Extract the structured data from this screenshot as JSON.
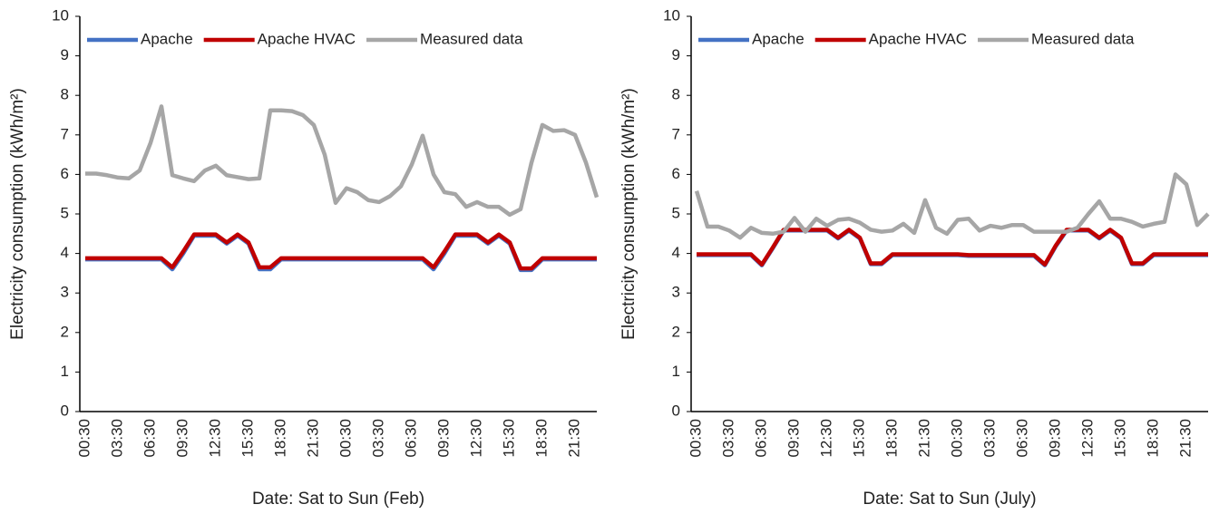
{
  "chart_data": [
    {
      "type": "line",
      "x_label": "Date: Sat to Sun (Feb)",
      "y_label": "Electricity consumption (kWh/m²)",
      "categories": [
        "00:30",
        null,
        null,
        "03:30",
        null,
        null,
        "06:30",
        null,
        null,
        "09:30",
        null,
        null,
        "12:30",
        null,
        null,
        "15:30",
        null,
        null,
        "18:30",
        null,
        null,
        "21:30",
        null,
        null,
        "00:30",
        null,
        null,
        "03:30",
        null,
        null,
        "06:30",
        null,
        null,
        "09:30",
        null,
        null,
        "12:30",
        null,
        null,
        "15:30",
        null,
        null,
        "18:30",
        null,
        null,
        "21:30",
        null,
        null
      ],
      "series": [
        {
          "name": "Apache",
          "color": "#4472c4",
          "values": [
            3.85,
            3.85,
            3.85,
            3.85,
            3.85,
            3.85,
            3.85,
            3.85,
            3.6,
            4.0,
            4.45,
            4.45,
            4.45,
            4.25,
            4.45,
            4.25,
            3.6,
            3.6,
            3.85,
            3.85,
            3.85,
            3.85,
            3.85,
            3.85,
            3.85,
            3.85,
            3.85,
            3.85,
            3.85,
            3.85,
            3.85,
            3.85,
            3.6,
            4.0,
            4.45,
            4.45,
            4.45,
            4.25,
            4.45,
            4.25,
            3.58,
            3.58,
            3.85,
            3.85,
            3.85,
            3.85,
            3.85,
            3.85
          ]
        },
        {
          "name": "Apache HVAC",
          "color": "#c00000",
          "values": [
            3.88,
            3.88,
            3.88,
            3.88,
            3.88,
            3.88,
            3.88,
            3.88,
            3.65,
            4.05,
            4.48,
            4.48,
            4.48,
            4.28,
            4.48,
            4.28,
            3.65,
            3.65,
            3.88,
            3.88,
            3.88,
            3.88,
            3.88,
            3.88,
            3.88,
            3.88,
            3.88,
            3.88,
            3.88,
            3.88,
            3.88,
            3.88,
            3.65,
            4.05,
            4.48,
            4.48,
            4.48,
            4.28,
            4.48,
            4.28,
            3.62,
            3.62,
            3.88,
            3.88,
            3.88,
            3.88,
            3.88,
            3.88
          ]
        },
        {
          "name": "Measured data",
          "color": "#a6a6a6",
          "values": [
            6.02,
            6.02,
            5.98,
            5.92,
            5.9,
            6.1,
            6.8,
            7.72,
            5.98,
            5.9,
            5.83,
            6.1,
            6.22,
            5.98,
            5.93,
            5.88,
            5.9,
            7.62,
            7.62,
            7.6,
            7.5,
            7.25,
            6.5,
            5.28,
            5.65,
            5.55,
            5.35,
            5.3,
            5.45,
            5.7,
            6.25,
            6.98,
            6.0,
            5.55,
            5.5,
            5.18,
            5.3,
            5.18,
            5.18,
            4.98,
            5.12,
            6.3,
            7.25,
            7.1,
            7.12,
            7.0,
            6.3,
            5.42
          ]
        }
      ],
      "ylim": [
        0,
        10
      ],
      "yticks": [
        0,
        1,
        2,
        3,
        4,
        5,
        6,
        7,
        8,
        9,
        10
      ],
      "legend": "top",
      "grid": false
    },
    {
      "type": "line",
      "x_label": "Date: Sat to Sun (July)",
      "y_label": "Electricity consumption (kWh/m²)",
      "categories": [
        "00:30",
        null,
        null,
        "03:30",
        null,
        null,
        "06:30",
        null,
        null,
        "09:30",
        null,
        null,
        "12:30",
        null,
        null,
        "15:30",
        null,
        null,
        "18:30",
        null,
        null,
        "21:30",
        null,
        null,
        "00:30",
        null,
        null,
        "03:30",
        null,
        null,
        "06:30",
        null,
        null,
        "09:30",
        null,
        null,
        "12:30",
        null,
        null,
        "15:30",
        null,
        null,
        "18:30",
        null,
        null,
        "21:30",
        null,
        null
      ],
      "series": [
        {
          "name": "Apache",
          "color": "#4472c4",
          "values": [
            3.96,
            3.96,
            3.96,
            3.96,
            3.96,
            3.96,
            3.7,
            4.13,
            4.58,
            4.58,
            4.58,
            4.58,
            4.58,
            4.38,
            4.58,
            4.38,
            3.73,
            3.73,
            3.96,
            3.96,
            3.96,
            3.96,
            3.96,
            3.96,
            3.96,
            3.94,
            3.94,
            3.94,
            3.94,
            3.94,
            3.94,
            3.94,
            3.7,
            4.18,
            4.58,
            4.58,
            4.58,
            4.38,
            4.58,
            4.38,
            3.73,
            3.73,
            3.96,
            3.96,
            3.96,
            3.96,
            3.96,
            3.96
          ]
        },
        {
          "name": "Apache HVAC",
          "color": "#c00000",
          "values": [
            3.98,
            3.98,
            3.98,
            3.98,
            3.98,
            3.98,
            3.72,
            4.15,
            4.6,
            4.6,
            4.6,
            4.6,
            4.6,
            4.4,
            4.6,
            4.4,
            3.75,
            3.75,
            3.98,
            3.98,
            3.98,
            3.98,
            3.98,
            3.98,
            3.98,
            3.96,
            3.96,
            3.96,
            3.96,
            3.96,
            3.96,
            3.96,
            3.72,
            4.2,
            4.6,
            4.6,
            4.6,
            4.4,
            4.6,
            4.4,
            3.75,
            3.75,
            3.98,
            3.98,
            3.98,
            3.98,
            3.98,
            3.98
          ]
        },
        {
          "name": "Measured data",
          "color": "#a6a6a6",
          "values": [
            5.58,
            4.68,
            4.68,
            4.58,
            4.4,
            4.65,
            4.52,
            4.5,
            4.55,
            4.9,
            4.55,
            4.88,
            4.7,
            4.85,
            4.88,
            4.78,
            4.6,
            4.55,
            4.58,
            4.75,
            4.52,
            5.35,
            4.65,
            4.5,
            4.85,
            4.88,
            4.58,
            4.7,
            4.65,
            4.72,
            4.72,
            4.55,
            4.55,
            4.55,
            4.55,
            4.65,
            5.0,
            5.32,
            4.88,
            4.88,
            4.8,
            4.68,
            4.75,
            4.8,
            6.0,
            5.75,
            4.72,
            5.0
          ]
        }
      ],
      "ylim": [
        0,
        10
      ],
      "yticks": [
        0,
        1,
        2,
        3,
        4,
        5,
        6,
        7,
        8,
        9,
        10
      ],
      "legend": "top",
      "grid": false
    }
  ]
}
